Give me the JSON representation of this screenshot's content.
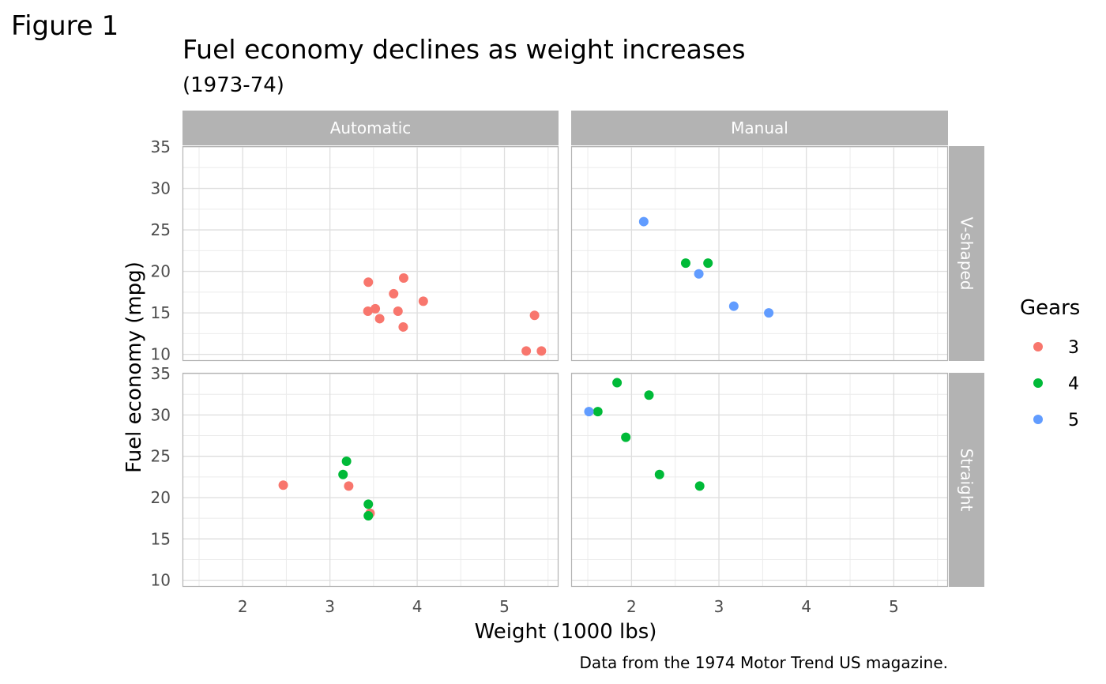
{
  "figure_label": "Figure 1",
  "chart_data": {
    "type": "scatter",
    "title": "Fuel economy declines as weight increases",
    "subtitle": "(1973-74)",
    "xlabel": "Weight (1000 lbs)",
    "ylabel": "Fuel economy (mpg)",
    "caption": "Data from the 1974 Motor Trend US magazine.",
    "xlim": [
      1.31,
      5.62
    ],
    "ylim": [
      9.2,
      35.1
    ],
    "x_ticks": [
      2,
      3,
      4,
      5
    ],
    "y_ticks": [
      10,
      15,
      20,
      25,
      30,
      35
    ],
    "grid": true,
    "facet_columns": [
      "Automatic",
      "Manual"
    ],
    "facet_rows": [
      "V-shaped",
      "Straight"
    ],
    "legend": {
      "title": "Gears",
      "position": "right",
      "entries": [
        {
          "label": "3",
          "color": "#F8766D"
        },
        {
          "label": "4",
          "color": "#00BA38"
        },
        {
          "label": "5",
          "color": "#619CFF"
        }
      ]
    },
    "series": [
      {
        "gear": "3",
        "color": "#F8766D",
        "points": [
          {
            "col": "Automatic",
            "row": "V-shaped",
            "x": 3.44,
            "y": 18.7
          },
          {
            "col": "Automatic",
            "row": "V-shaped",
            "x": 3.57,
            "y": 14.3
          },
          {
            "col": "Automatic",
            "row": "V-shaped",
            "x": 4.07,
            "y": 16.4
          },
          {
            "col": "Automatic",
            "row": "V-shaped",
            "x": 3.73,
            "y": 17.3
          },
          {
            "col": "Automatic",
            "row": "V-shaped",
            "x": 3.78,
            "y": 15.2
          },
          {
            "col": "Automatic",
            "row": "V-shaped",
            "x": 5.25,
            "y": 10.4
          },
          {
            "col": "Automatic",
            "row": "V-shaped",
            "x": 5.424,
            "y": 10.4
          },
          {
            "col": "Automatic",
            "row": "V-shaped",
            "x": 5.345,
            "y": 14.7
          },
          {
            "col": "Automatic",
            "row": "V-shaped",
            "x": 3.52,
            "y": 15.5
          },
          {
            "col": "Automatic",
            "row": "V-shaped",
            "x": 3.435,
            "y": 15.2
          },
          {
            "col": "Automatic",
            "row": "V-shaped",
            "x": 3.84,
            "y": 13.3
          },
          {
            "col": "Automatic",
            "row": "V-shaped",
            "x": 3.845,
            "y": 19.2
          },
          {
            "col": "Automatic",
            "row": "Straight",
            "x": 3.215,
            "y": 21.4
          },
          {
            "col": "Automatic",
            "row": "Straight",
            "x": 3.46,
            "y": 18.1
          },
          {
            "col": "Automatic",
            "row": "Straight",
            "x": 2.465,
            "y": 21.5
          }
        ]
      },
      {
        "gear": "4",
        "color": "#00BA38",
        "points": [
          {
            "col": "Automatic",
            "row": "Straight",
            "x": 3.19,
            "y": 24.4
          },
          {
            "col": "Automatic",
            "row": "Straight",
            "x": 3.15,
            "y": 22.8
          },
          {
            "col": "Automatic",
            "row": "Straight",
            "x": 3.44,
            "y": 19.2
          },
          {
            "col": "Automatic",
            "row": "Straight",
            "x": 3.44,
            "y": 17.8
          },
          {
            "col": "Manual",
            "row": "V-shaped",
            "x": 2.62,
            "y": 21.0
          },
          {
            "col": "Manual",
            "row": "V-shaped",
            "x": 2.875,
            "y": 21.0
          },
          {
            "col": "Manual",
            "row": "Straight",
            "x": 2.32,
            "y": 22.8
          },
          {
            "col": "Manual",
            "row": "Straight",
            "x": 2.2,
            "y": 32.4
          },
          {
            "col": "Manual",
            "row": "Straight",
            "x": 1.615,
            "y": 30.4
          },
          {
            "col": "Manual",
            "row": "Straight",
            "x": 1.835,
            "y": 33.9
          },
          {
            "col": "Manual",
            "row": "Straight",
            "x": 1.935,
            "y": 27.3
          },
          {
            "col": "Manual",
            "row": "Straight",
            "x": 2.78,
            "y": 21.4
          }
        ]
      },
      {
        "gear": "5",
        "color": "#619CFF",
        "points": [
          {
            "col": "Manual",
            "row": "V-shaped",
            "x": 2.14,
            "y": 26.0
          },
          {
            "col": "Manual",
            "row": "V-shaped",
            "x": 3.17,
            "y": 15.8
          },
          {
            "col": "Manual",
            "row": "V-shaped",
            "x": 2.77,
            "y": 19.7
          },
          {
            "col": "Manual",
            "row": "V-shaped",
            "x": 3.57,
            "y": 15.0
          },
          {
            "col": "Manual",
            "row": "Straight",
            "x": 1.513,
            "y": 30.4
          }
        ]
      }
    ]
  }
}
